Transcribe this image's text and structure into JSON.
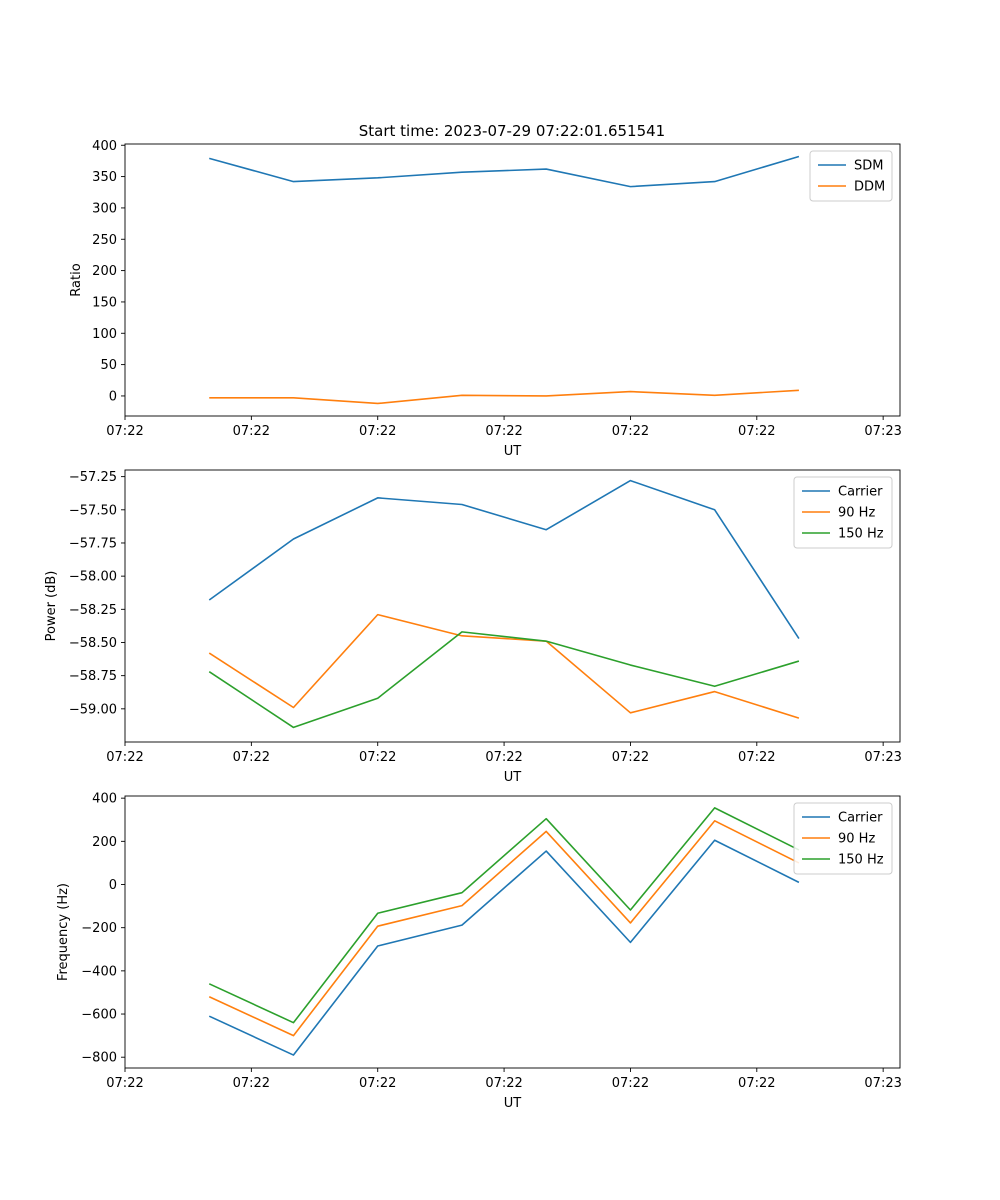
{
  "figure_title": "Start time: 2023-07-29 07:22:01.651541",
  "colors": {
    "blue": "#1f77b4",
    "orange": "#ff7f0e",
    "green": "#2ca02c"
  },
  "chart_data": [
    {
      "type": "line",
      "title": "Start time: 2023-07-29 07:22:01.651541",
      "xlabel": "UT",
      "ylabel": "Ratio",
      "x": [
        1,
        2,
        3,
        4,
        5,
        6,
        7,
        8
      ],
      "xlim": [
        0,
        9.2
      ],
      "xticks": [
        {
          "v": 0,
          "label": "07:22"
        },
        {
          "v": 1.5,
          "label": "07:22"
        },
        {
          "v": 3,
          "label": "07:22"
        },
        {
          "v": 4.5,
          "label": "07:22"
        },
        {
          "v": 6,
          "label": "07:22"
        },
        {
          "v": 7.5,
          "label": "07:22"
        },
        {
          "v": 9,
          "label": "07:23"
        }
      ],
      "ylim": [
        -32,
        402
      ],
      "yticks": [
        0,
        50,
        100,
        150,
        200,
        250,
        300,
        350,
        400
      ],
      "legend": "top-right",
      "series": [
        {
          "name": "SDM",
          "color": "#1f77b4",
          "values": [
            379,
            342,
            348,
            357,
            362,
            334,
            342,
            382
          ]
        },
        {
          "name": "DDM",
          "color": "#ff7f0e",
          "values": [
            -3,
            -3,
            -12,
            1,
            0,
            7,
            1,
            9
          ]
        }
      ]
    },
    {
      "type": "line",
      "title": "",
      "xlabel": "UT",
      "ylabel": "Power (dB)",
      "x": [
        1,
        2,
        3,
        4,
        5,
        6,
        7,
        8
      ],
      "xlim": [
        0,
        9.2
      ],
      "xticks": [
        {
          "v": 0,
          "label": "07:22"
        },
        {
          "v": 1.5,
          "label": "07:22"
        },
        {
          "v": 3,
          "label": "07:22"
        },
        {
          "v": 4.5,
          "label": "07:22"
        },
        {
          "v": 6,
          "label": "07:22"
        },
        {
          "v": 7.5,
          "label": "07:22"
        },
        {
          "v": 9,
          "label": "07:23"
        }
      ],
      "ylim": [
        -59.25,
        -57.2
      ],
      "yticks": [
        -59.0,
        -58.75,
        -58.5,
        -58.25,
        -58.0,
        -57.75,
        -57.5,
        -57.25
      ],
      "ytick_labels": [
        "−59.00",
        "−58.75",
        "−58.50",
        "−58.25",
        "−58.00",
        "−57.75",
        "−57.50",
        "−57.25"
      ],
      "legend": "top-right",
      "series": [
        {
          "name": "Carrier",
          "color": "#1f77b4",
          "values": [
            -58.18,
            -57.72,
            -57.41,
            -57.46,
            -57.65,
            -57.28,
            -57.5,
            -58.47
          ]
        },
        {
          "name": "90 Hz",
          "color": "#ff7f0e",
          "values": [
            -58.58,
            -58.99,
            -58.29,
            -58.45,
            -58.49,
            -59.03,
            -58.87,
            -59.07
          ]
        },
        {
          "name": "150 Hz",
          "color": "#2ca02c",
          "values": [
            -58.72,
            -59.14,
            -58.92,
            -58.42,
            -58.49,
            -58.67,
            -58.83,
            -58.64
          ]
        }
      ]
    },
    {
      "type": "line",
      "title": "",
      "xlabel": "UT",
      "ylabel": "Frequency (Hz)",
      "x": [
        1,
        2,
        3,
        4,
        5,
        6,
        7,
        8
      ],
      "xlim": [
        0,
        9.2
      ],
      "xticks": [
        {
          "v": 0,
          "label": "07:22"
        },
        {
          "v": 1.5,
          "label": "07:22"
        },
        {
          "v": 3,
          "label": "07:22"
        },
        {
          "v": 4.5,
          "label": "07:22"
        },
        {
          "v": 6,
          "label": "07:22"
        },
        {
          "v": 7.5,
          "label": "07:22"
        },
        {
          "v": 9,
          "label": "07:23"
        }
      ],
      "ylim": [
        -850,
        410
      ],
      "yticks": [
        -800,
        -600,
        -400,
        -200,
        0,
        200,
        400
      ],
      "ytick_labels": [
        "−800",
        "−600",
        "−400",
        "−200",
        "0",
        "200",
        "400"
      ],
      "legend": "top-right",
      "series": [
        {
          "name": "Carrier",
          "color": "#1f77b4",
          "values": [
            -610,
            -790,
            -285,
            -188,
            155,
            -268,
            205,
            10
          ]
        },
        {
          "name": "90 Hz",
          "color": "#ff7f0e",
          "values": [
            -520,
            -700,
            -193,
            -98,
            246,
            -178,
            295,
            100
          ]
        },
        {
          "name": "150 Hz",
          "color": "#2ca02c",
          "values": [
            -460,
            -640,
            -133,
            -38,
            305,
            -118,
            355,
            160
          ]
        }
      ]
    }
  ]
}
